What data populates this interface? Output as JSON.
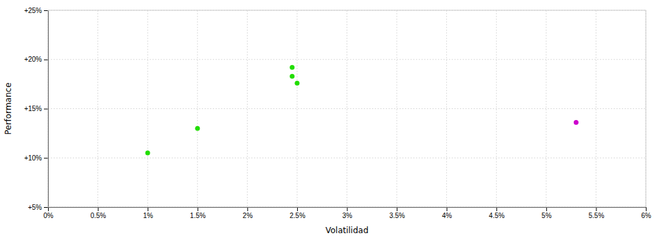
{
  "chart_data": {
    "type": "scatter",
    "xlabel": "Volatilidad",
    "ylabel": "Performance",
    "xlim": [
      0,
      0.06
    ],
    "ylim": [
      0.05,
      0.25
    ],
    "xticks": [
      {
        "value": 0,
        "label": "0%"
      },
      {
        "value": 0.005,
        "label": "0.5%"
      },
      {
        "value": 0.01,
        "label": "1%"
      },
      {
        "value": 0.015,
        "label": "1.5%"
      },
      {
        "value": 0.02,
        "label": "2%"
      },
      {
        "value": 0.025,
        "label": "2.5%"
      },
      {
        "value": 0.03,
        "label": "3%"
      },
      {
        "value": 0.035,
        "label": "3.5%"
      },
      {
        "value": 0.04,
        "label": "4%"
      },
      {
        "value": 0.045,
        "label": "4.5%"
      },
      {
        "value": 0.05,
        "label": "5%"
      },
      {
        "value": 0.055,
        "label": "5.5%"
      },
      {
        "value": 0.06,
        "label": "6%"
      }
    ],
    "yticks": [
      {
        "value": 0.05,
        "label": "+5%"
      },
      {
        "value": 0.1,
        "label": "+10%"
      },
      {
        "value": 0.15,
        "label": "+15%"
      },
      {
        "value": 0.2,
        "label": "+20%"
      },
      {
        "value": 0.25,
        "label": "+25%"
      }
    ],
    "grid": true,
    "series": [
      {
        "color": "#22dd00",
        "x": [
          0.01,
          0.015,
          0.0245,
          0.0245,
          0.025
        ],
        "values": [
          0.105,
          0.13,
          0.192,
          0.183,
          0.176
        ]
      },
      {
        "color": "#cc00cc",
        "x": [
          0.053
        ],
        "values": [
          0.136
        ]
      }
    ]
  }
}
